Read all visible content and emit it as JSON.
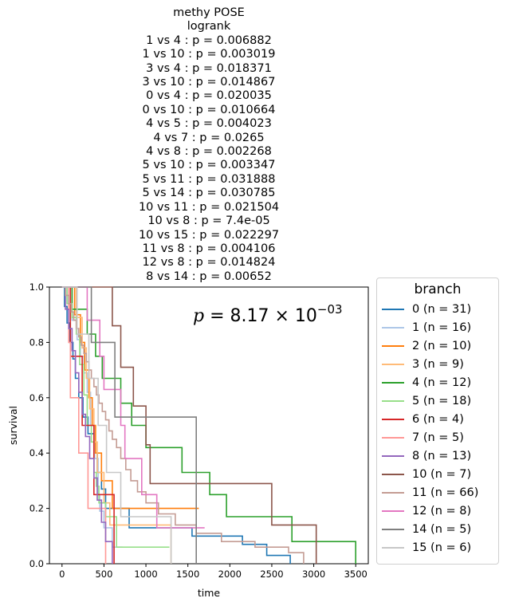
{
  "chart_data": {
    "type": "line",
    "title_lines": [
      "methy POSE",
      "logrank",
      "1 vs 4 :  p = 0.006882",
      "1 vs 10 :  p = 0.003019",
      "3 vs 4 :  p = 0.018371",
      "3 vs 10 :  p = 0.014867",
      "0 vs 4 :  p = 0.020035",
      "0 vs 10 :  p = 0.010664",
      "4 vs 5 :  p = 0.004023",
      "4 vs 7 :  p = 0.0265",
      "4 vs 8 :  p = 0.002268",
      "5 vs 10 :  p = 0.003347",
      "5 vs 11 :  p = 0.031888",
      "5 vs 14 :  p = 0.030785",
      "10 vs 11 :  p = 0.021504",
      "10 vs 8 :  p = 7.4e-05",
      "10 vs 15 :  p = 0.022297",
      "11 vs 8 :  p = 0.004106",
      "12 vs 8 :  p = 0.014824",
      "8 vs 14 :  p = 0.00652"
    ],
    "annotation": {
      "base": "8.17",
      "exponent": "−03"
    },
    "xlabel": "time",
    "ylabel": "survival",
    "xlim": [
      -150,
      3650
    ],
    "ylim": [
      0,
      1
    ],
    "xticks": [
      0,
      500,
      1000,
      1500,
      2000,
      2500,
      3000,
      3500
    ],
    "yticks": [
      0.0,
      0.2,
      0.4,
      0.6,
      0.8,
      1.0
    ],
    "legend_title": "branch",
    "legend_position": "outside-right",
    "grid": false,
    "series": [
      {
        "name": "0 (n = 31)",
        "color": "#1f77b4",
        "steps": [
          [
            0,
            1.0
          ],
          [
            30,
            0.93
          ],
          [
            60,
            0.87
          ],
          [
            90,
            0.8
          ],
          [
            130,
            0.74
          ],
          [
            160,
            0.67
          ],
          [
            200,
            0.6
          ],
          [
            250,
            0.53
          ],
          [
            310,
            0.47
          ],
          [
            380,
            0.4
          ],
          [
            420,
            0.33
          ],
          [
            470,
            0.27
          ],
          [
            520,
            0.2
          ],
          [
            800,
            0.13
          ],
          [
            1100,
            0.13
          ],
          [
            1550,
            0.1
          ],
          [
            2150,
            0.07
          ],
          [
            2440,
            0.03
          ],
          [
            2720,
            0.0
          ]
        ]
      },
      {
        "name": "1 (n = 16)",
        "color": "#aec7e8",
        "steps": [
          [
            0,
            1.0
          ],
          [
            60,
            0.94
          ],
          [
            120,
            0.88
          ],
          [
            180,
            0.81
          ],
          [
            220,
            0.75
          ],
          [
            260,
            0.69
          ],
          [
            300,
            0.62
          ],
          [
            340,
            0.5
          ],
          [
            390,
            0.38
          ],
          [
            430,
            0.25
          ],
          [
            450,
            0.19
          ],
          [
            480,
            0.19
          ],
          [
            500,
            0.13
          ],
          [
            600,
            0.06
          ],
          [
            720,
            0.06
          ]
        ]
      },
      {
        "name": "2 (n = 10)",
        "color": "#ff7f0e",
        "steps": [
          [
            0,
            1.0
          ],
          [
            150,
            0.9
          ],
          [
            220,
            0.8
          ],
          [
            270,
            0.7
          ],
          [
            320,
            0.6
          ],
          [
            360,
            0.5
          ],
          [
            400,
            0.4
          ],
          [
            470,
            0.3
          ],
          [
            600,
            0.2
          ],
          [
            1000,
            0.2
          ],
          [
            1630,
            0.2
          ]
        ]
      },
      {
        "name": "3 (n = 9)",
        "color": "#ffbb78",
        "steps": [
          [
            0,
            1.0
          ],
          [
            170,
            0.89
          ],
          [
            240,
            0.78
          ],
          [
            290,
            0.67
          ],
          [
            330,
            0.56
          ],
          [
            380,
            0.44
          ],
          [
            420,
            0.33
          ],
          [
            500,
            0.22
          ],
          [
            570,
            0.14
          ],
          [
            820,
            0.14
          ],
          [
            1000,
            0.14
          ],
          [
            1300,
            0.0
          ]
        ]
      },
      {
        "name": "4 (n = 12)",
        "color": "#2ca02c",
        "steps": [
          [
            0,
            1.0
          ],
          [
            120,
            0.92
          ],
          [
            300,
            0.83
          ],
          [
            400,
            0.75
          ],
          [
            480,
            0.67
          ],
          [
            700,
            0.58
          ],
          [
            830,
            0.5
          ],
          [
            1000,
            0.42
          ],
          [
            1430,
            0.33
          ],
          [
            1760,
            0.25
          ],
          [
            1960,
            0.17
          ],
          [
            2740,
            0.08
          ],
          [
            3000,
            0.08
          ],
          [
            3500,
            0.0
          ]
        ]
      },
      {
        "name": "5 (n = 18)",
        "color": "#98df8a",
        "steps": [
          [
            0,
            1.0
          ],
          [
            60,
            0.94
          ],
          [
            120,
            0.89
          ],
          [
            170,
            0.83
          ],
          [
            210,
            0.72
          ],
          [
            260,
            0.61
          ],
          [
            300,
            0.5
          ],
          [
            350,
            0.44
          ],
          [
            380,
            0.33
          ],
          [
            410,
            0.28
          ],
          [
            440,
            0.22
          ],
          [
            520,
            0.17
          ],
          [
            650,
            0.06
          ],
          [
            1000,
            0.06
          ],
          [
            1280,
            0.06
          ]
        ]
      },
      {
        "name": "6 (n = 4)",
        "color": "#d62728",
        "steps": [
          [
            0,
            1.0
          ],
          [
            100,
            0.75
          ],
          [
            240,
            0.5
          ],
          [
            380,
            0.25
          ],
          [
            450,
            0.25
          ],
          [
            620,
            0.0
          ]
        ]
      },
      {
        "name": "7 (n = 5)",
        "color": "#ff9896",
        "steps": [
          [
            0,
            1.0
          ],
          [
            80,
            0.8
          ],
          [
            100,
            0.6
          ],
          [
            200,
            0.4
          ],
          [
            280,
            0.4
          ],
          [
            310,
            0.2
          ],
          [
            380,
            0.2
          ],
          [
            520,
            0.0
          ]
        ]
      },
      {
        "name": "8 (n = 13)",
        "color": "#9467bd",
        "steps": [
          [
            0,
            1.0
          ],
          [
            40,
            0.92
          ],
          [
            80,
            0.85
          ],
          [
            120,
            0.77
          ],
          [
            160,
            0.69
          ],
          [
            200,
            0.62
          ],
          [
            240,
            0.54
          ],
          [
            280,
            0.46
          ],
          [
            330,
            0.38
          ],
          [
            380,
            0.31
          ],
          [
            420,
            0.23
          ],
          [
            470,
            0.15
          ],
          [
            520,
            0.08
          ],
          [
            600,
            0.0
          ]
        ]
      },
      {
        "name": "10 (n = 7)",
        "color": "#8c564b",
        "steps": [
          [
            0,
            1.0
          ],
          [
            600,
            0.86
          ],
          [
            700,
            0.71
          ],
          [
            850,
            0.57
          ],
          [
            1000,
            0.43
          ],
          [
            1050,
            0.29
          ],
          [
            2000,
            0.29
          ],
          [
            2500,
            0.14
          ],
          [
            2800,
            0.14
          ],
          [
            3030,
            0.0
          ]
        ]
      },
      {
        "name": "11 (n = 66)",
        "color": "#c49c94",
        "steps": [
          [
            0,
            1.0
          ],
          [
            40,
            0.97
          ],
          [
            80,
            0.94
          ],
          [
            110,
            0.91
          ],
          [
            140,
            0.88
          ],
          [
            170,
            0.85
          ],
          [
            200,
            0.82
          ],
          [
            230,
            0.79
          ],
          [
            260,
            0.76
          ],
          [
            290,
            0.73
          ],
          [
            320,
            0.7
          ],
          [
            350,
            0.67
          ],
          [
            380,
            0.64
          ],
          [
            410,
            0.61
          ],
          [
            440,
            0.58
          ],
          [
            480,
            0.55
          ],
          [
            520,
            0.52
          ],
          [
            560,
            0.48
          ],
          [
            600,
            0.45
          ],
          [
            650,
            0.42
          ],
          [
            700,
            0.38
          ],
          [
            760,
            0.34
          ],
          [
            820,
            0.3
          ],
          [
            900,
            0.26
          ],
          [
            1000,
            0.22
          ],
          [
            1150,
            0.18
          ],
          [
            1350,
            0.14
          ],
          [
            1600,
            0.11
          ],
          [
            1900,
            0.08
          ],
          [
            2300,
            0.06
          ],
          [
            2700,
            0.04
          ],
          [
            2880,
            0.0
          ]
        ]
      },
      {
        "name": "12 (n = 8)",
        "color": "#e377c2",
        "steps": [
          [
            0,
            1.0
          ],
          [
            300,
            0.88
          ],
          [
            450,
            0.75
          ],
          [
            500,
            0.63
          ],
          [
            700,
            0.5
          ],
          [
            750,
            0.38
          ],
          [
            950,
            0.25
          ],
          [
            1130,
            0.13
          ],
          [
            1350,
            0.13
          ],
          [
            1700,
            0.13
          ]
        ]
      },
      {
        "name": "14 (n = 5)",
        "color": "#7f7f7f",
        "steps": [
          [
            0,
            1.0
          ],
          [
            350,
            0.8
          ],
          [
            620,
            0.8
          ],
          [
            630,
            0.53
          ],
          [
            1200,
            0.53
          ],
          [
            1600,
            0.0
          ]
        ]
      },
      {
        "name": "15 (n = 6)",
        "color": "#c7c7c7",
        "steps": [
          [
            0,
            1.0
          ],
          [
            180,
            0.83
          ],
          [
            320,
            0.67
          ],
          [
            430,
            0.5
          ],
          [
            530,
            0.33
          ],
          [
            640,
            0.33
          ],
          [
            700,
            0.17
          ],
          [
            900,
            0.17
          ],
          [
            1300,
            0.0
          ]
        ]
      }
    ]
  }
}
